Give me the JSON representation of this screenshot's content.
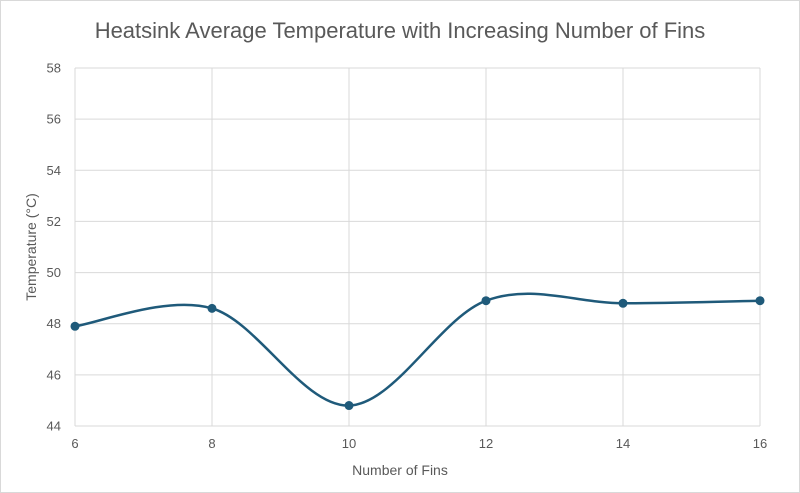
{
  "chart_data": {
    "type": "line",
    "title": "Heatsink Average Temperature with Increasing Number of Fins",
    "xlabel": "Number of Fins",
    "ylabel": "Temperature (°C)",
    "x": [
      6,
      8,
      10,
      12,
      14,
      16
    ],
    "series": [
      {
        "values": [
          47.9,
          48.6,
          44.8,
          48.9,
          48.8,
          48.9
        ],
        "color": "#1f5a7a"
      }
    ],
    "xlim": [
      6,
      16
    ],
    "ylim": [
      44,
      58
    ],
    "xticks": [
      "6",
      "8",
      "10",
      "12",
      "14",
      "16"
    ],
    "yticks": [
      "44",
      "46",
      "48",
      "50",
      "52",
      "54",
      "56",
      "58"
    ],
    "smooth": true,
    "markers": true,
    "grid": true,
    "legend": "none"
  }
}
